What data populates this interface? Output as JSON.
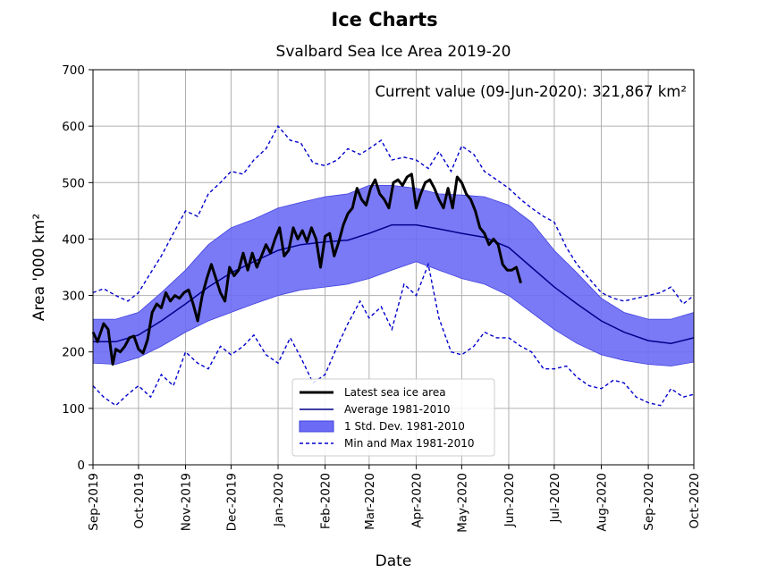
{
  "chart_data": {
    "type": "line",
    "suptitle": "Ice Charts",
    "title": "Svalbard Sea Ice Area 2019-20",
    "xlabel": "Date",
    "ylabel": "Area '000 km²",
    "annotation": "Current value (09-Jun-2020): 321,867 km²",
    "ylim": [
      0,
      700
    ],
    "xlim": [
      "2019-09-01",
      "2020-10-01"
    ],
    "yticks": [
      0,
      100,
      200,
      300,
      400,
      500,
      600,
      700
    ],
    "xticks": [
      "2019-09-01",
      "2019-10-01",
      "2019-11-01",
      "2019-12-01",
      "2020-01-01",
      "2020-02-01",
      "2020-03-01",
      "2020-04-01",
      "2020-05-01",
      "2020-06-01",
      "2020-07-01",
      "2020-08-01",
      "2020-09-01",
      "2020-10-01"
    ],
    "xtick_labels": [
      "Sep-2019",
      "Oct-2019",
      "Nov-2019",
      "Dec-2019",
      "Jan-2020",
      "Feb-2020",
      "Mar-2020",
      "Apr-2020",
      "May-2020",
      "Jun-2020",
      "Jul-2020",
      "Aug-2020",
      "Sep-2020",
      "Oct-2020"
    ],
    "grid": true,
    "legend_position": "lower-center",
    "legend": [
      {
        "label": "Latest sea ice area",
        "style": "line-thick",
        "color": "#000000"
      },
      {
        "label": "Average 1981-2010",
        "style": "line",
        "color": "#00008b"
      },
      {
        "label": "1 Std. Dev. 1981-2010",
        "style": "band",
        "color": "#6b6bf5"
      },
      {
        "label": "Min and Max 1981-2010",
        "style": "dashed",
        "color": "#0000cd"
      }
    ],
    "colors": {
      "latest": "#000000",
      "average": "#00008b",
      "band_fill": "#6b6bf5",
      "band_edge": "#4040e0",
      "minmax": "#0000cd",
      "grid": "#b0b0b0"
    },
    "series": [
      {
        "name": "Latest sea ice area",
        "x": [
          "2019-09-01",
          "2019-09-04",
          "2019-09-08",
          "2019-09-11",
          "2019-09-14",
          "2019-09-16",
          "2019-09-19",
          "2019-09-22",
          "2019-09-25",
          "2019-09-28",
          "2019-10-01",
          "2019-10-04",
          "2019-10-07",
          "2019-10-10",
          "2019-10-13",
          "2019-10-16",
          "2019-10-19",
          "2019-10-22",
          "2019-10-25",
          "2019-10-28",
          "2019-10-31",
          "2019-11-03",
          "2019-11-06",
          "2019-11-09",
          "2019-11-12",
          "2019-11-15",
          "2019-11-18",
          "2019-11-21",
          "2019-11-24",
          "2019-11-27",
          "2019-11-30",
          "2019-12-03",
          "2019-12-06",
          "2019-12-09",
          "2019-12-12",
          "2019-12-15",
          "2019-12-18",
          "2019-12-21",
          "2019-12-24",
          "2019-12-27",
          "2019-12-30",
          "2020-01-02",
          "2020-01-05",
          "2020-01-08",
          "2020-01-11",
          "2020-01-14",
          "2020-01-17",
          "2020-01-20",
          "2020-01-23",
          "2020-01-26",
          "2020-01-29",
          "2020-02-01",
          "2020-02-04",
          "2020-02-07",
          "2020-02-10",
          "2020-02-13",
          "2020-02-16",
          "2020-02-19",
          "2020-02-22",
          "2020-02-25",
          "2020-02-28",
          "2020-03-02",
          "2020-03-05",
          "2020-03-08",
          "2020-03-11",
          "2020-03-14",
          "2020-03-17",
          "2020-03-20",
          "2020-03-23",
          "2020-03-26",
          "2020-03-29",
          "2020-04-01",
          "2020-04-04",
          "2020-04-07",
          "2020-04-10",
          "2020-04-13",
          "2020-04-16",
          "2020-04-19",
          "2020-04-22",
          "2020-04-25",
          "2020-04-28",
          "2020-05-01",
          "2020-05-04",
          "2020-05-07",
          "2020-05-10",
          "2020-05-13",
          "2020-05-16",
          "2020-05-19",
          "2020-05-22",
          "2020-05-25",
          "2020-05-28",
          "2020-05-31",
          "2020-06-03",
          "2020-06-06",
          "2020-06-09"
        ],
        "y": [
          235,
          218,
          250,
          240,
          178,
          205,
          200,
          210,
          225,
          228,
          205,
          198,
          222,
          270,
          285,
          278,
          305,
          290,
          300,
          295,
          305,
          310,
          285,
          255,
          300,
          330,
          355,
          330,
          305,
          290,
          350,
          335,
          345,
          375,
          345,
          375,
          350,
          370,
          390,
          375,
          400,
          420,
          370,
          380,
          420,
          400,
          415,
          395,
          420,
          400,
          350,
          405,
          410,
          370,
          395,
          425,
          445,
          455,
          490,
          470,
          460,
          490,
          505,
          480,
          470,
          455,
          500,
          505,
          495,
          510,
          515,
          455,
          480,
          500,
          505,
          490,
          470,
          455,
          490,
          455,
          510,
          500,
          480,
          470,
          450,
          420,
          410,
          390,
          400,
          390,
          355,
          345,
          345,
          350,
          322
        ]
      },
      {
        "name": "Average 1981-2010",
        "x": [
          "2019-09-01",
          "2019-09-16",
          "2019-10-01",
          "2019-10-16",
          "2019-11-01",
          "2019-11-16",
          "2019-12-01",
          "2019-12-16",
          "2020-01-01",
          "2020-01-16",
          "2020-02-01",
          "2020-02-16",
          "2020-03-01",
          "2020-03-16",
          "2020-04-01",
          "2020-04-16",
          "2020-05-01",
          "2020-05-16",
          "2020-06-01",
          "2020-06-16",
          "2020-07-01",
          "2020-07-16",
          "2020-08-01",
          "2020-08-16",
          "2020-09-01",
          "2020-09-16",
          "2020-10-01"
        ],
        "y": [
          218,
          218,
          230,
          255,
          285,
          315,
          340,
          360,
          380,
          390,
          395,
          398,
          410,
          425,
          425,
          418,
          410,
          403,
          385,
          350,
          315,
          285,
          255,
          235,
          220,
          215,
          225
        ]
      },
      {
        "name": "1 Std. Dev. 1981-2010 (upper)",
        "x": [
          "2019-09-01",
          "2019-09-16",
          "2019-10-01",
          "2019-10-16",
          "2019-11-01",
          "2019-11-16",
          "2019-12-01",
          "2019-12-16",
          "2020-01-01",
          "2020-01-16",
          "2020-02-01",
          "2020-02-16",
          "2020-03-01",
          "2020-03-16",
          "2020-04-01",
          "2020-04-16",
          "2020-05-01",
          "2020-05-16",
          "2020-06-01",
          "2020-06-16",
          "2020-07-01",
          "2020-07-16",
          "2020-08-01",
          "2020-08-16",
          "2020-09-01",
          "2020-09-16",
          "2020-10-01"
        ],
        "y": [
          258,
          258,
          270,
          305,
          345,
          390,
          420,
          435,
          455,
          465,
          475,
          480,
          495,
          495,
          490,
          480,
          478,
          475,
          460,
          430,
          380,
          340,
          295,
          270,
          258,
          258,
          270
        ]
      },
      {
        "name": "1 Std. Dev. 1981-2010 (lower)",
        "x": [
          "2019-09-01",
          "2019-09-16",
          "2019-10-01",
          "2019-10-16",
          "2019-11-01",
          "2019-11-16",
          "2019-12-01",
          "2019-12-16",
          "2020-01-01",
          "2020-01-16",
          "2020-02-01",
          "2020-02-16",
          "2020-03-01",
          "2020-03-16",
          "2020-04-01",
          "2020-04-16",
          "2020-05-01",
          "2020-05-16",
          "2020-06-01",
          "2020-06-16",
          "2020-07-01",
          "2020-07-16",
          "2020-08-01",
          "2020-08-16",
          "2020-09-01",
          "2020-09-16",
          "2020-10-01"
        ],
        "y": [
          180,
          178,
          190,
          210,
          235,
          255,
          270,
          285,
          300,
          310,
          315,
          320,
          330,
          345,
          360,
          345,
          330,
          320,
          300,
          270,
          240,
          215,
          195,
          185,
          178,
          175,
          182
        ]
      },
      {
        "name": "Max 1981-2010",
        "x": [
          "2019-09-01",
          "2019-09-08",
          "2019-09-16",
          "2019-09-24",
          "2019-10-01",
          "2019-10-09",
          "2019-10-16",
          "2019-10-24",
          "2019-11-01",
          "2019-11-09",
          "2019-11-16",
          "2019-11-24",
          "2019-12-01",
          "2019-12-09",
          "2019-12-16",
          "2019-12-24",
          "2020-01-01",
          "2020-01-09",
          "2020-01-16",
          "2020-01-24",
          "2020-02-01",
          "2020-02-09",
          "2020-02-16",
          "2020-02-24",
          "2020-03-01",
          "2020-03-09",
          "2020-03-16",
          "2020-03-24",
          "2020-04-01",
          "2020-04-09",
          "2020-04-16",
          "2020-04-24",
          "2020-05-01",
          "2020-05-09",
          "2020-05-16",
          "2020-05-24",
          "2020-06-01",
          "2020-06-09",
          "2020-06-16",
          "2020-06-24",
          "2020-07-01",
          "2020-07-09",
          "2020-07-16",
          "2020-07-24",
          "2020-08-01",
          "2020-08-09",
          "2020-08-16",
          "2020-08-24",
          "2020-09-01",
          "2020-09-09",
          "2020-09-16",
          "2020-09-24",
          "2020-10-01"
        ],
        "y": [
          305,
          312,
          300,
          290,
          305,
          340,
          370,
          410,
          450,
          440,
          480,
          500,
          520,
          515,
          540,
          560,
          600,
          575,
          570,
          535,
          530,
          540,
          560,
          550,
          560,
          575,
          540,
          545,
          540,
          525,
          555,
          520,
          565,
          550,
          520,
          505,
          490,
          470,
          455,
          440,
          430,
          385,
          355,
          330,
          305,
          295,
          290,
          295,
          300,
          305,
          315,
          285,
          300
        ]
      },
      {
        "name": "Min 1981-2010",
        "x": [
          "2019-09-01",
          "2019-09-08",
          "2019-09-16",
          "2019-09-24",
          "2019-10-01",
          "2019-10-09",
          "2019-10-16",
          "2019-10-24",
          "2019-11-01",
          "2019-11-09",
          "2019-11-16",
          "2019-11-24",
          "2019-12-01",
          "2019-12-09",
          "2019-12-16",
          "2019-12-24",
          "2020-01-01",
          "2020-01-09",
          "2020-01-16",
          "2020-01-24",
          "2020-02-01",
          "2020-02-09",
          "2020-02-16",
          "2020-02-24",
          "2020-03-01",
          "2020-03-09",
          "2020-03-16",
          "2020-03-24",
          "2020-04-01",
          "2020-04-09",
          "2020-04-16",
          "2020-04-24",
          "2020-05-01",
          "2020-05-09",
          "2020-05-16",
          "2020-05-24",
          "2020-06-01",
          "2020-06-09",
          "2020-06-16",
          "2020-06-24",
          "2020-07-01",
          "2020-07-09",
          "2020-07-16",
          "2020-07-24",
          "2020-08-01",
          "2020-08-09",
          "2020-08-16",
          "2020-08-24",
          "2020-09-01",
          "2020-09-09",
          "2020-09-16",
          "2020-09-24",
          "2020-10-01"
        ],
        "y": [
          140,
          120,
          105,
          125,
          140,
          120,
          160,
          140,
          200,
          180,
          170,
          210,
          195,
          210,
          230,
          195,
          180,
          225,
          190,
          145,
          160,
          210,
          250,
          290,
          260,
          280,
          240,
          320,
          300,
          355,
          260,
          200,
          195,
          210,
          235,
          225,
          225,
          210,
          200,
          170,
          170,
          175,
          155,
          140,
          135,
          150,
          145,
          120,
          110,
          105,
          135,
          120,
          125
        ]
      }
    ]
  }
}
